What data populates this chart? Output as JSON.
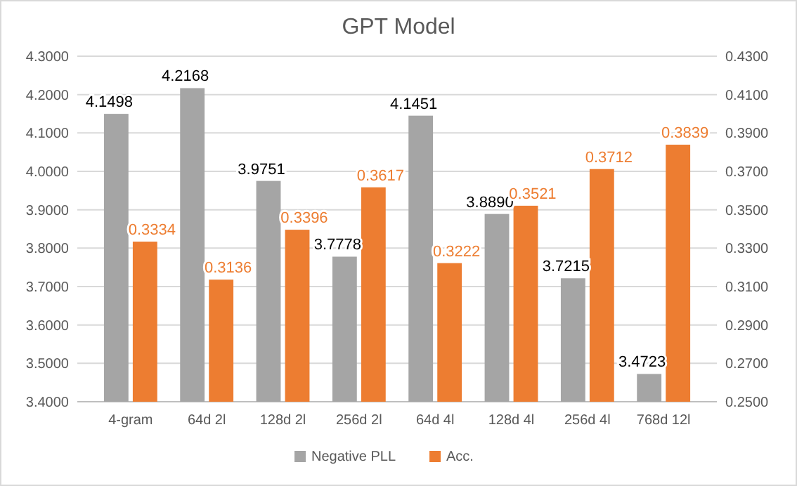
{
  "chart_data": {
    "type": "bar",
    "title": "GPT Model",
    "categories": [
      "4-gram",
      "64d 2l",
      "128d 2l",
      "256d 2l",
      "64d 4l",
      "128d 4l",
      "256d 4l",
      "768d 12l"
    ],
    "series": [
      {
        "name": "Negative PLL",
        "color": "#a5a5a5",
        "values": [
          4.1498,
          4.2168,
          3.9751,
          3.7778,
          4.1451,
          3.889,
          3.7215,
          3.4723
        ],
        "value_labels": [
          "4.1498",
          "4.2168",
          "3.9751",
          "3.7778",
          "4.1451",
          "3.8890",
          "3.7215",
          "3.4723"
        ]
      },
      {
        "name": "Acc.",
        "color": "#ed7d31",
        "axis": "y2",
        "values": [
          0.3334,
          0.3136,
          0.3396,
          0.3617,
          0.3222,
          0.3521,
          0.3712,
          0.3839
        ],
        "value_labels": [
          "0.3334",
          "0.3136",
          "0.3396",
          "0.3617",
          "0.3222",
          "0.3521",
          "0.3712",
          "0.3839"
        ]
      }
    ],
    "ylim": [
      3.4,
      4.3
    ],
    "yticks": [
      {
        "value": 3.4,
        "label": "3.4000"
      },
      {
        "value": 3.5,
        "label": "3.5000"
      },
      {
        "value": 3.6,
        "label": "3.6000"
      },
      {
        "value": 3.7,
        "label": "3.7000"
      },
      {
        "value": 3.8,
        "label": "3.8000"
      },
      {
        "value": 3.9,
        "label": "3.9000"
      },
      {
        "value": 4.0,
        "label": "4.0000"
      },
      {
        "value": 4.1,
        "label": "4.1000"
      },
      {
        "value": 4.2,
        "label": "4.2000"
      },
      {
        "value": 4.3,
        "label": "4.3000"
      }
    ],
    "y2lim": [
      0.25,
      0.43
    ],
    "y2ticks": [
      {
        "value": 0.25,
        "label": "0.2500"
      },
      {
        "value": 0.27,
        "label": "0.2700"
      },
      {
        "value": 0.29,
        "label": "0.2900"
      },
      {
        "value": 0.31,
        "label": "0.3100"
      },
      {
        "value": 0.33,
        "label": "0.3300"
      },
      {
        "value": 0.35,
        "label": "0.3500"
      },
      {
        "value": 0.37,
        "label": "0.3700"
      },
      {
        "value": 0.39,
        "label": "0.3900"
      },
      {
        "value": 0.41,
        "label": "0.4100"
      },
      {
        "value": 0.43,
        "label": "0.4300"
      }
    ],
    "grid": "y",
    "legend": "bottom"
  }
}
